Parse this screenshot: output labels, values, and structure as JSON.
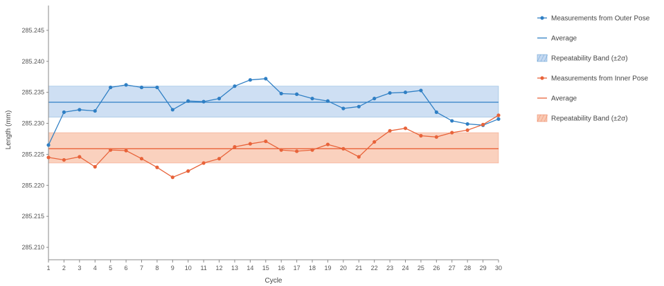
{
  "chart_data": {
    "type": "line",
    "xlabel": "Cycle",
    "ylabel": "Length (mm)",
    "x": [
      1,
      2,
      3,
      4,
      5,
      6,
      7,
      8,
      9,
      10,
      11,
      12,
      13,
      14,
      15,
      16,
      17,
      18,
      19,
      20,
      21,
      22,
      23,
      24,
      25,
      26,
      27,
      28,
      29,
      30
    ],
    "xlim": [
      1,
      30
    ],
    "ylim": [
      285.208,
      285.249
    ],
    "y_ticks": [
      "285.210",
      "285.215",
      "285.220",
      "285.225",
      "285.230",
      "285.235",
      "285.240",
      "285.245"
    ],
    "grid": false,
    "legend_position": "right",
    "series": [
      {
        "name": "Measurements from Outer Pose",
        "color": "#2f7fc4",
        "values": [
          285.2265,
          285.2318,
          285.2322,
          285.232,
          285.2358,
          285.2362,
          285.2358,
          285.2358,
          285.2322,
          285.2336,
          285.2335,
          285.234,
          285.236,
          285.237,
          285.2372,
          285.2348,
          285.2347,
          285.234,
          285.2336,
          285.2324,
          285.2327,
          285.234,
          285.2349,
          285.235,
          285.2353,
          285.2318,
          285.2304,
          285.2299,
          285.2297,
          285.2307
        ],
        "average": 285.2334,
        "average_label": "Average",
        "band": [
          285.231,
          285.236
        ],
        "band_label": "Repeatability Band (±2σ)",
        "band_color": "#c5d9f1"
      },
      {
        "name": "Measurements from Inner Pose",
        "color": "#e8633a",
        "values": [
          285.2245,
          285.2241,
          285.2246,
          285.223,
          285.2257,
          285.2256,
          285.2243,
          285.2229,
          285.2213,
          285.2223,
          285.2236,
          285.2243,
          285.2262,
          285.2267,
          285.2271,
          285.2257,
          285.2255,
          285.2257,
          285.2266,
          285.2259,
          285.2246,
          285.227,
          285.2288,
          285.2292,
          285.228,
          285.2278,
          285.2285,
          285.2289,
          285.2298,
          285.2313
        ],
        "average": 285.2259,
        "average_label": "Average",
        "band": [
          285.2236,
          285.2285
        ],
        "band_label": "Repeatability Band (±2σ)",
        "band_color": "#f9c9b3"
      }
    ]
  }
}
